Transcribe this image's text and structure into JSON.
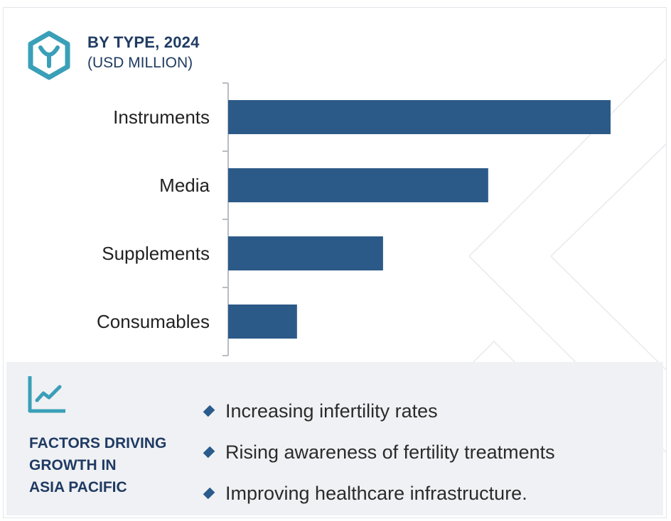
{
  "header": {
    "title": "BY TYPE, 2024",
    "subtitle": "(USD MILLION)",
    "logo_icon": "hexagon-y-logo-icon"
  },
  "colors": {
    "bar": "#2c5a88",
    "heading": "#1f3b63",
    "accent": "#3a9fb8",
    "panel_bg": "#f0f1f4"
  },
  "chart_data": {
    "type": "bar",
    "orientation": "horizontal",
    "categories": [
      "Instruments",
      "Media",
      "Supplements",
      "Consumables"
    ],
    "values": [
      100,
      68,
      40.5,
      18
    ],
    "xlim": [
      0,
      100
    ],
    "title": "",
    "xlabel": "",
    "ylabel": "",
    "grid": false,
    "value_axis_visible": false
  },
  "factors_panel": {
    "icon": "trend-chart-icon",
    "heading_lines": [
      "FACTORS DRIVING",
      "GROWTH IN",
      "ASIA PACIFIC"
    ],
    "items": [
      "Increasing infertility rates",
      "Rising awareness of fertility treatments",
      "Improving healthcare infrastructure."
    ]
  }
}
